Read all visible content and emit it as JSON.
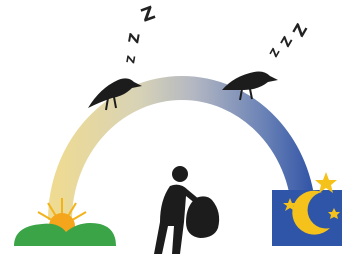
{
  "illustration": {
    "sleep_left": [
      "Z",
      "Z",
      "Z"
    ],
    "sleep_right": [
      "Z",
      "Z",
      "Z"
    ]
  }
}
